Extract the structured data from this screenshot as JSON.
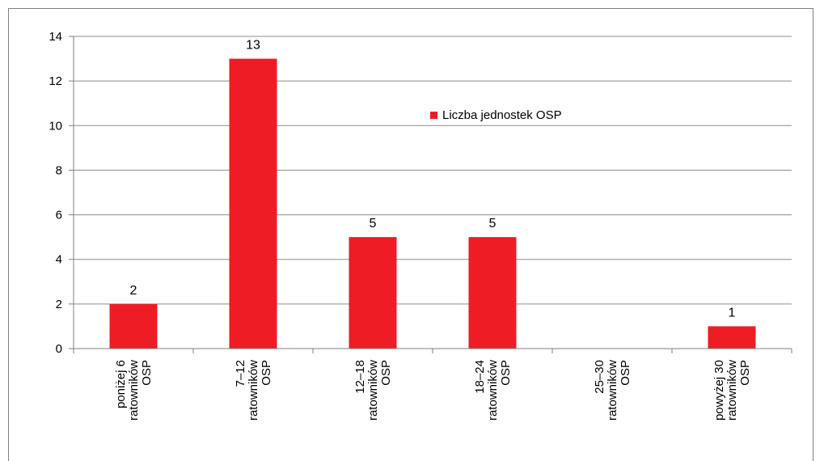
{
  "chart_data": {
    "type": "bar",
    "title": "",
    "xlabel": "",
    "ylabel": "",
    "ylim": [
      0,
      14
    ],
    "yticks": [
      0,
      2,
      4,
      6,
      8,
      10,
      12,
      14
    ],
    "grid": true,
    "legend_position": "top-right",
    "categories": [
      [
        "poniżej 6",
        "ratowników",
        "OSP"
      ],
      [
        "7–12",
        "ratowników",
        "OSP"
      ],
      [
        "12–18",
        "ratowników",
        "OSP"
      ],
      [
        "18–24",
        "ratowników",
        "OSP"
      ],
      [
        "25–30",
        "ratowników",
        "OSP"
      ],
      [
        "powyżej 30",
        "ratowników",
        "OSP"
      ]
    ],
    "series": [
      {
        "name": "Liczba jednostek OSP",
        "color": "#ee1c24",
        "values": [
          2,
          13,
          5,
          5,
          0,
          1
        ],
        "data_labels": [
          "2",
          "13",
          "5",
          "5",
          "",
          "1"
        ]
      }
    ]
  }
}
